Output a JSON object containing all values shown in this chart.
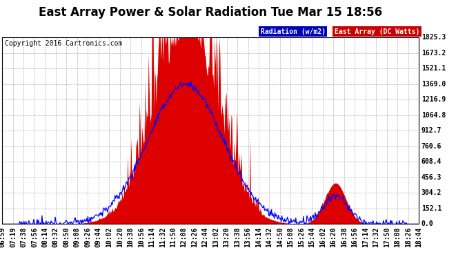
{
  "title": "East Array Power & Solar Radiation Tue Mar 15 18:56",
  "copyright": "Copyright 2016 Cartronics.com",
  "legend_radiation": "Radiation (w/m2)",
  "legend_array": "East Array (DC Watts)",
  "legend_radiation_bg": "#0000bb",
  "legend_array_bg": "#cc0000",
  "yticks": [
    0.0,
    152.1,
    304.2,
    456.3,
    608.4,
    760.6,
    912.7,
    1064.8,
    1216.9,
    1369.0,
    1521.1,
    1673.2,
    1825.3
  ],
  "ymax": 1825.3,
  "ymin": 0.0,
  "bg_color": "#ffffff",
  "plot_bg_color": "#ffffff",
  "grid_color": "#aaaaaa",
  "fill_color_array": "#dd0000",
  "line_color_radiation": "#0000ff",
  "title_fontsize": 12,
  "copyright_fontsize": 7,
  "tick_fontsize": 7,
  "xtick_labels": [
    "06:59",
    "07:19",
    "07:38",
    "07:56",
    "08:14",
    "08:32",
    "08:50",
    "09:08",
    "09:26",
    "09:44",
    "10:02",
    "10:20",
    "10:38",
    "10:56",
    "11:14",
    "11:32",
    "11:50",
    "12:08",
    "12:26",
    "12:44",
    "13:02",
    "13:20",
    "13:38",
    "13:56",
    "14:14",
    "14:32",
    "14:50",
    "15:08",
    "15:26",
    "15:44",
    "16:02",
    "16:20",
    "16:38",
    "16:56",
    "17:14",
    "17:32",
    "17:50",
    "18:08",
    "18:26",
    "18:44"
  ]
}
